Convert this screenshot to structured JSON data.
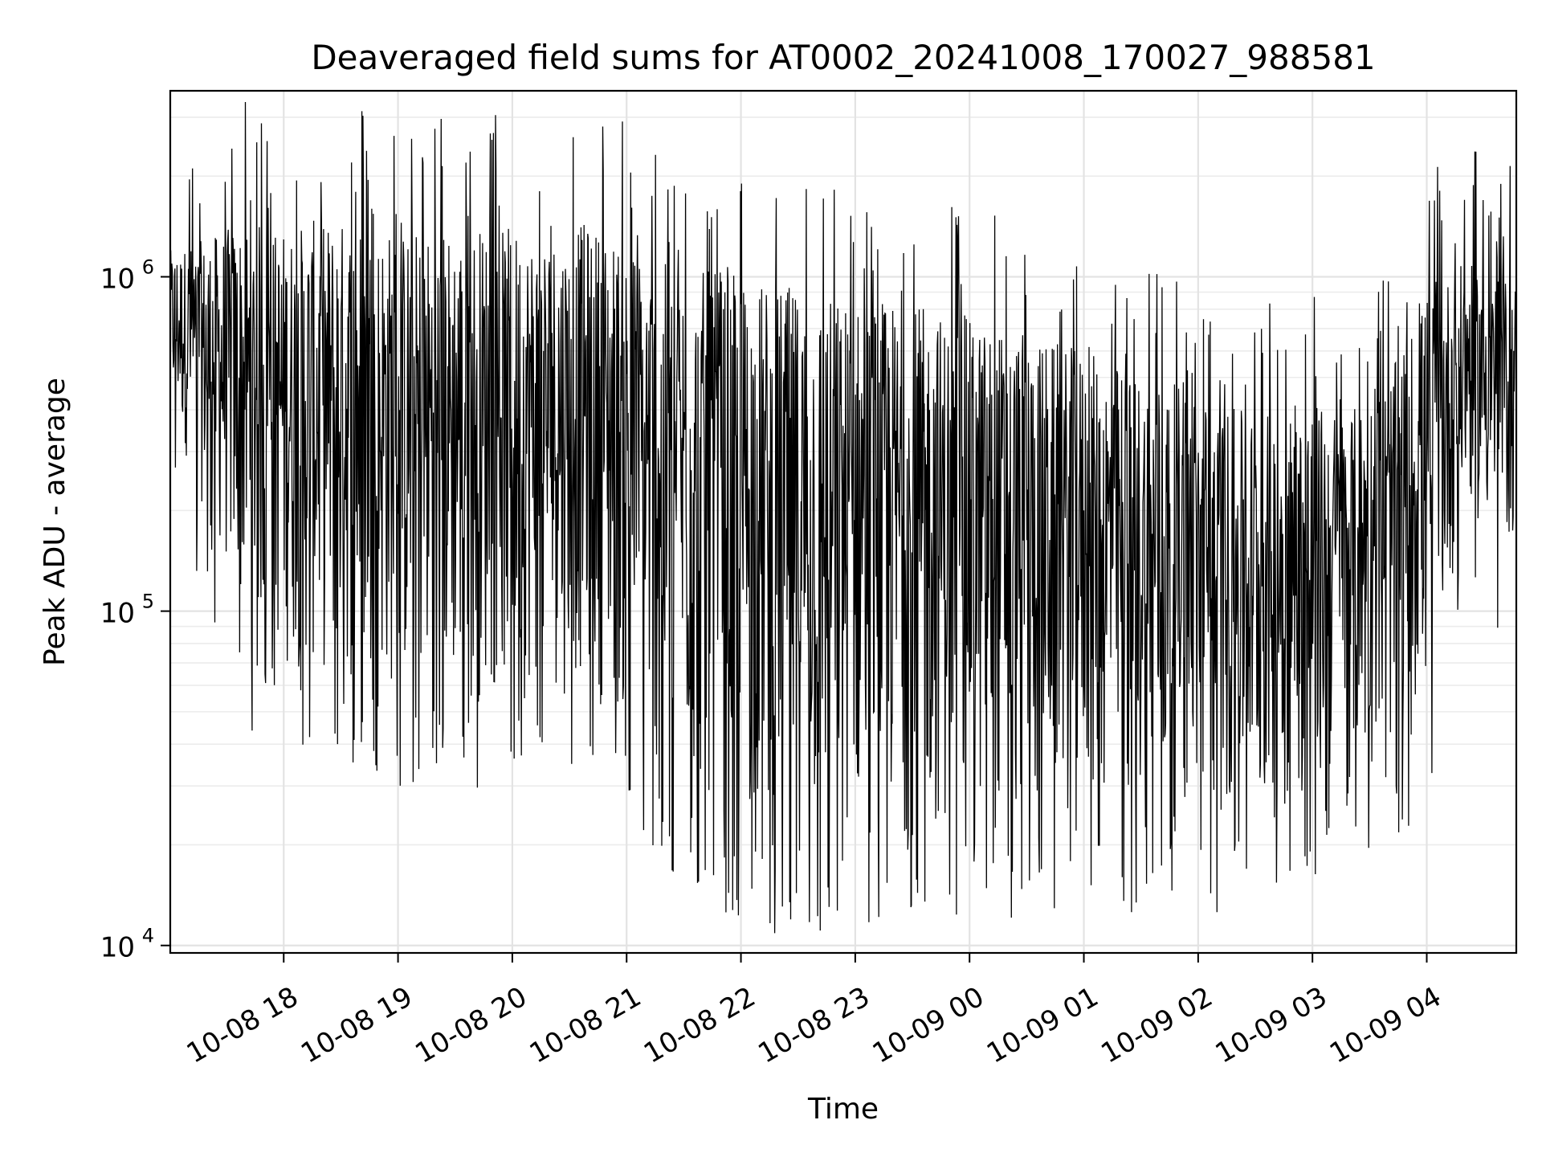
{
  "chart_data": {
    "type": "line",
    "title": "Deaveraged field sums for AT0002_20241008_170027_988581",
    "xlabel": "Time",
    "ylabel": "Peak ADU - average",
    "yscale": "log",
    "ylim": [
      9500,
      3600000
    ],
    "xlim": [
      "2024-10-08 17:00:27",
      "2024-10-09 04:47:00"
    ],
    "grid": true,
    "line_color": "#000000",
    "x_ticks": [
      {
        "value": "2024-10-08 18:00",
        "label": "10-08 18"
      },
      {
        "value": "2024-10-08 19:00",
        "label": "10-08 19"
      },
      {
        "value": "2024-10-08 20:00",
        "label": "10-08 20"
      },
      {
        "value": "2024-10-08 21:00",
        "label": "10-08 21"
      },
      {
        "value": "2024-10-08 22:00",
        "label": "10-08 22"
      },
      {
        "value": "2024-10-08 23:00",
        "label": "10-08 23"
      },
      {
        "value": "2024-10-09 00:00",
        "label": "10-09 00"
      },
      {
        "value": "2024-10-09 01:00",
        "label": "10-09 01"
      },
      {
        "value": "2024-10-09 02:00",
        "label": "10-09 02"
      },
      {
        "value": "2024-10-09 03:00",
        "label": "10-09 03"
      },
      {
        "value": "2024-10-09 04:00",
        "label": "10-09 04"
      }
    ],
    "y_ticks": [
      {
        "value": 10000,
        "base": "10",
        "exp": "4"
      },
      {
        "value": 100000,
        "base": "10",
        "exp": "5"
      },
      {
        "value": 1000000,
        "base": "10",
        "exp": "6"
      }
    ],
    "series": [
      {
        "x": [
          "2024-10-08 17:00",
          "2024-10-08 17:20",
          "2024-10-08 17:40",
          "2024-10-08 18:00",
          "2024-10-08 18:20",
          "2024-10-08 18:40",
          "2024-10-08 19:00",
          "2024-10-08 19:20",
          "2024-10-08 19:40",
          "2024-10-08 20:00",
          "2024-10-08 20:20",
          "2024-10-08 20:40",
          "2024-10-08 21:00",
          "2024-10-08 21:20",
          "2024-10-08 21:40",
          "2024-10-08 22:00",
          "2024-10-08 22:20",
          "2024-10-08 22:40",
          "2024-10-08 23:00",
          "2024-10-08 23:20",
          "2024-10-08 23:40",
          "2024-10-09 00:00",
          "2024-10-09 00:20",
          "2024-10-09 00:40",
          "2024-10-09 01:00",
          "2024-10-09 01:20",
          "2024-10-09 01:40",
          "2024-10-09 02:00",
          "2024-10-09 02:20",
          "2024-10-09 02:40",
          "2024-10-09 03:00",
          "2024-10-09 03:20",
          "2024-10-09 03:40",
          "2024-10-09 04:00",
          "2024-10-09 04:20",
          "2024-10-09 04:40"
        ],
        "upper": [
          1200000,
          1300000,
          1500000,
          1400000,
          1500000,
          1500000,
          1400000,
          1400000,
          1450000,
          1400000,
          1400000,
          1450000,
          1300000,
          1100000,
          1050000,
          1000000,
          950000,
          900000,
          850000,
          850000,
          800000,
          750000,
          700000,
          650000,
          600000,
          550000,
          500000,
          450000,
          400000,
          400000,
          420000,
          400000,
          500000,
          900000,
          1100000,
          1000000
        ],
        "lower": [
          400000,
          180000,
          80000,
          65000,
          60000,
          55000,
          50000,
          48000,
          50000,
          52000,
          55000,
          60000,
          40000,
          28000,
          25000,
          20000,
          18000,
          18000,
          20000,
          20000,
          20000,
          22000,
          20000,
          22000,
          25000,
          22000,
          22000,
          22000,
          22000,
          22000,
          25000,
          30000,
          35000,
          45000,
          200000,
          150000
        ]
      }
    ]
  }
}
